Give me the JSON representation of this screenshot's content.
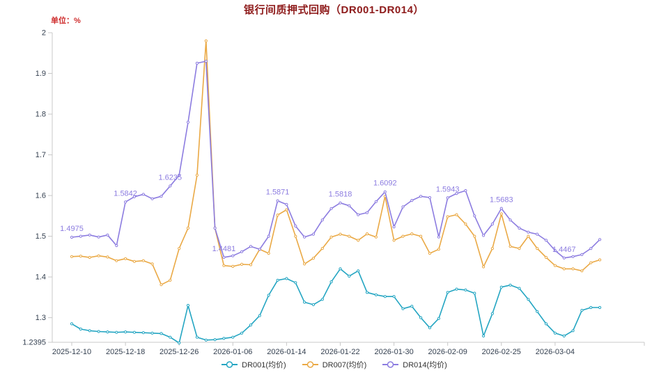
{
  "chart": {
    "title": "银行间质押式回购（DR001-DR014）",
    "unit_label": "单位：%",
    "colors": {
      "title": "#8e1b1b",
      "unit": "#cf2e2e",
      "axis_label": "#333f4f",
      "axis_line": "#c8c8c8",
      "dr001": "#23a5c2",
      "dr007": "#eaa945",
      "dr014": "#8c7ce0"
    }
  },
  "chart_data": {
    "type": "line",
    "title": "银行间质押式回购（DR001-DR014）",
    "ylabel": "单位：%",
    "ylim": [
      1.2395,
      2
    ],
    "grid": false,
    "legend_position": "bottom",
    "n_points": 60,
    "y_ticks": [
      {
        "value": 1.2395,
        "label": "1.2395"
      },
      {
        "value": 1.3,
        "label": "1.3"
      },
      {
        "value": 1.4,
        "label": "1.4"
      },
      {
        "value": 1.5,
        "label": "1.5"
      },
      {
        "value": 1.6,
        "label": "1.6"
      },
      {
        "value": 1.7,
        "label": "1.7"
      },
      {
        "value": 1.8,
        "label": "1.8"
      },
      {
        "value": 1.9,
        "label": "1.9"
      },
      {
        "value": 2,
        "label": "2"
      }
    ],
    "x_ticks": [
      {
        "index": 0,
        "label": "2025-12-10"
      },
      {
        "index": 6,
        "label": "2025-12-18"
      },
      {
        "index": 12,
        "label": "2025-12-26"
      },
      {
        "index": 18,
        "label": "2026-01-06"
      },
      {
        "index": 24,
        "label": "2026-01-14"
      },
      {
        "index": 30,
        "label": "2026-01-22"
      },
      {
        "index": 36,
        "label": "2026-01-30"
      },
      {
        "index": 42,
        "label": "2026-02-09"
      },
      {
        "index": 48,
        "label": "2026-02-25"
      },
      {
        "index": 54,
        "label": "2026-03-04"
      }
    ],
    "series": [
      {
        "id": "dr001",
        "name": "DR001(均价)",
        "color": "#23a5c2",
        "values": [
          1.285,
          1.272,
          1.268,
          1.266,
          1.265,
          1.264,
          1.265,
          1.264,
          1.263,
          1.262,
          1.261,
          1.252,
          1.238,
          1.33,
          1.252,
          1.245,
          1.246,
          1.249,
          1.252,
          1.262,
          1.282,
          1.305,
          1.355,
          1.392,
          1.396,
          1.386,
          1.338,
          1.332,
          1.345,
          1.388,
          1.42,
          1.402,
          1.415,
          1.362,
          1.356,
          1.352,
          1.352,
          1.322,
          1.328,
          1.3,
          1.275,
          1.298,
          1.362,
          1.37,
          1.368,
          1.36,
          1.255,
          1.31,
          1.375,
          1.38,
          1.372,
          1.345,
          1.315,
          1.285,
          1.262,
          1.255,
          1.268,
          1.318,
          1.325,
          1.325
        ]
      },
      {
        "id": "dr007",
        "name": "DR007(均价)",
        "color": "#eaa945",
        "values": [
          1.45,
          1.451,
          1.448,
          1.452,
          1.449,
          1.44,
          1.445,
          1.438,
          1.44,
          1.432,
          1.381,
          1.392,
          1.47,
          1.52,
          1.65,
          1.98,
          1.52,
          1.428,
          1.426,
          1.431,
          1.43,
          1.468,
          1.458,
          1.552,
          1.565,
          1.5,
          1.432,
          1.446,
          1.47,
          1.498,
          1.505,
          1.5,
          1.49,
          1.506,
          1.498,
          1.598,
          1.49,
          1.5,
          1.506,
          1.5,
          1.458,
          1.468,
          1.548,
          1.553,
          1.53,
          1.5,
          1.425,
          1.47,
          1.555,
          1.475,
          1.47,
          1.5,
          1.47,
          1.448,
          1.428,
          1.42,
          1.42,
          1.415,
          1.435,
          1.442
        ]
      },
      {
        "id": "dr014",
        "name": "DR014(均价)",
        "color": "#8c7ce0",
        "values": [
          1.4975,
          1.5,
          1.503,
          1.498,
          1.503,
          1.477,
          1.5842,
          1.597,
          1.603,
          1.592,
          1.598,
          1.6235,
          1.65,
          1.78,
          1.925,
          1.93,
          1.52,
          1.4481,
          1.452,
          1.462,
          1.475,
          1.468,
          1.5,
          1.5871,
          1.578,
          1.525,
          1.498,
          1.505,
          1.54,
          1.568,
          1.5818,
          1.575,
          1.553,
          1.558,
          1.585,
          1.6092,
          1.523,
          1.572,
          1.588,
          1.598,
          1.595,
          1.498,
          1.5943,
          1.605,
          1.612,
          1.55,
          1.502,
          1.53,
          1.5683,
          1.54,
          1.52,
          1.51,
          1.505,
          1.49,
          1.465,
          1.4467,
          1.45,
          1.455,
          1.47,
          1.492
        ],
        "annotations": [
          {
            "index": 0,
            "text": "1.4975"
          },
          {
            "index": 6,
            "text": "1.5842"
          },
          {
            "index": 11,
            "text": "1.6235"
          },
          {
            "index": 17,
            "text": "1.4481"
          },
          {
            "index": 23,
            "text": "1.5871"
          },
          {
            "index": 30,
            "text": "1.5818"
          },
          {
            "index": 35,
            "text": "1.6092"
          },
          {
            "index": 42,
            "text": "1.5943"
          },
          {
            "index": 48,
            "text": "1.5683"
          },
          {
            "index": 55,
            "text": "1.4467"
          }
        ]
      }
    ]
  }
}
